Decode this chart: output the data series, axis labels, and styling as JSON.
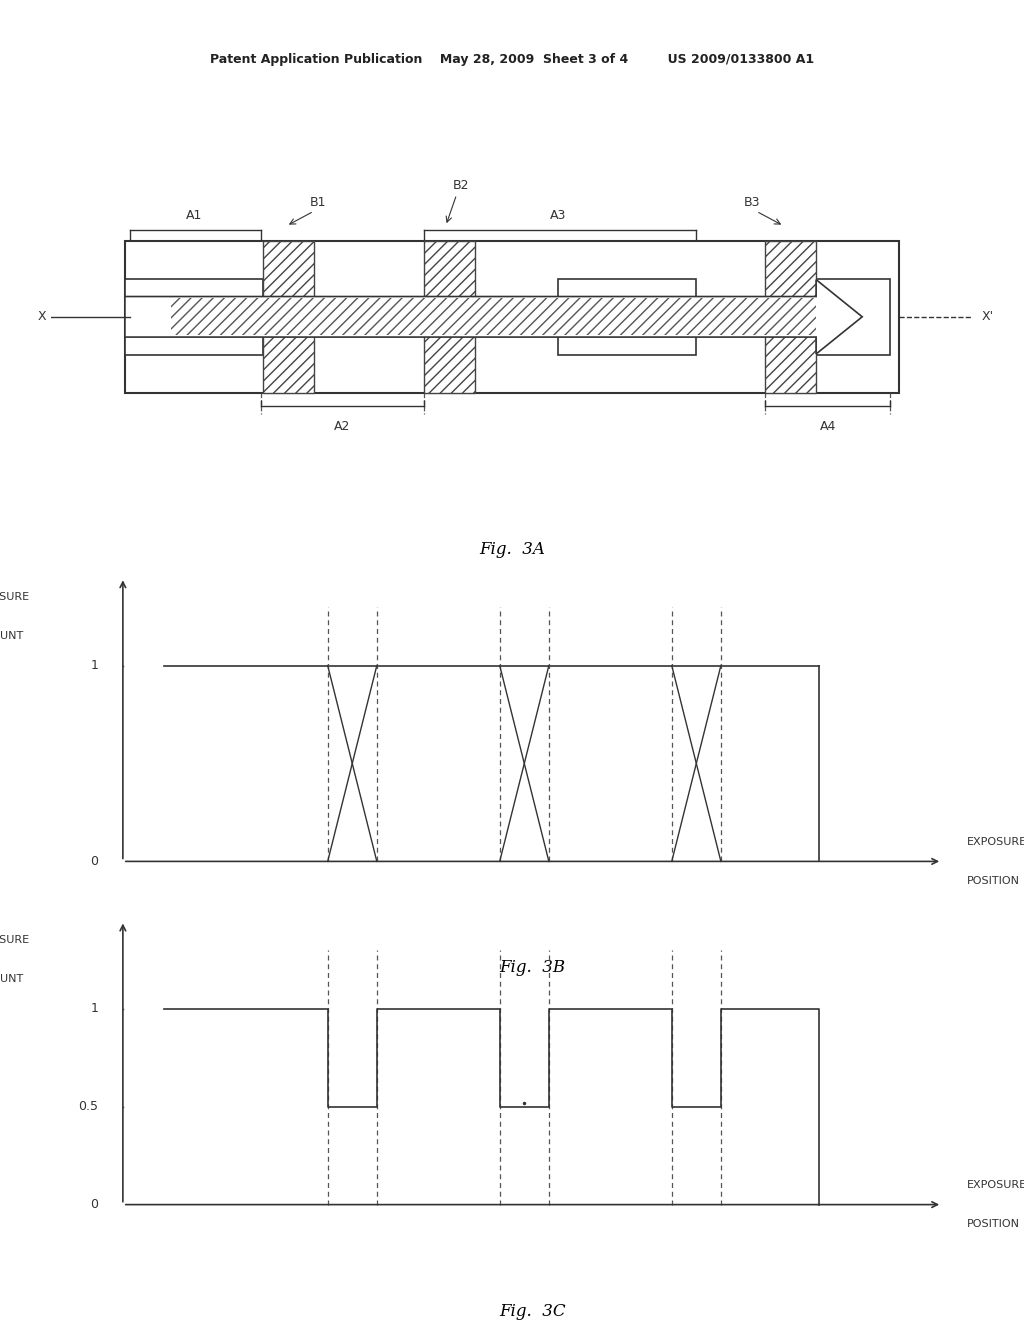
{
  "header_text": "Patent Application Publication    May 28, 2009  Sheet 3 of 4         US 2009/0133800 A1",
  "fig3a_label": "Fig.  3A",
  "fig3b_label": "Fig.  3B",
  "fig3c_label": "Fig.  3C",
  "line_color": "#333333",
  "hatch_color": "#555555",
  "dashed_color": "#555555"
}
